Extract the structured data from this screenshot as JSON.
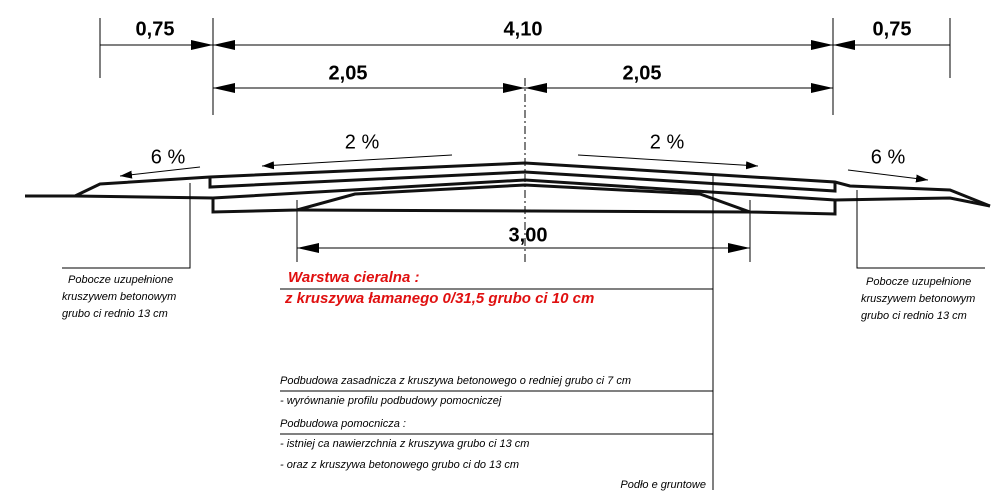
{
  "dimensions": {
    "left_shoulder": "0,75",
    "total": "4,10",
    "right_shoulder": "0,75",
    "left_half": "2,05",
    "right_half": "2,05",
    "layer": "3,00"
  },
  "slopes": {
    "left_shoulder": "6 %",
    "left_lane": "2 %",
    "right_lane": "2 %",
    "right_shoulder": "6 %"
  },
  "left_note": [
    "Pobocze uzupełnione",
    "kruszywem betonowym",
    "grubo ci  rednio 13 cm"
  ],
  "right_note": [
    "Pobocze uzupełnione",
    "kruszywem betonowym",
    "grubo ci  rednio 13 cm"
  ],
  "wearing_layer": [
    "Warstwa   cieralna :",
    "z  kruszywa łamanego  0/31,5  grubo ci  10  cm"
  ],
  "base_layer": [
    "Podbudowa  zasadnicza z  kruszywa betonowego o  redniej grubo ci 7  cm",
    " - wyrównanie profilu  podbudowy pomocniczej"
  ],
  "sub_base": [
    "Podbudowa  pomocnicza :",
    "- istniej ca nawierzchnia z  kruszywa  grubo ci    13 cm",
    "- oraz  z kruszywa betonowego  grubo ci  do 13 cm"
  ],
  "subgrade": "Podło e gruntowe"
}
